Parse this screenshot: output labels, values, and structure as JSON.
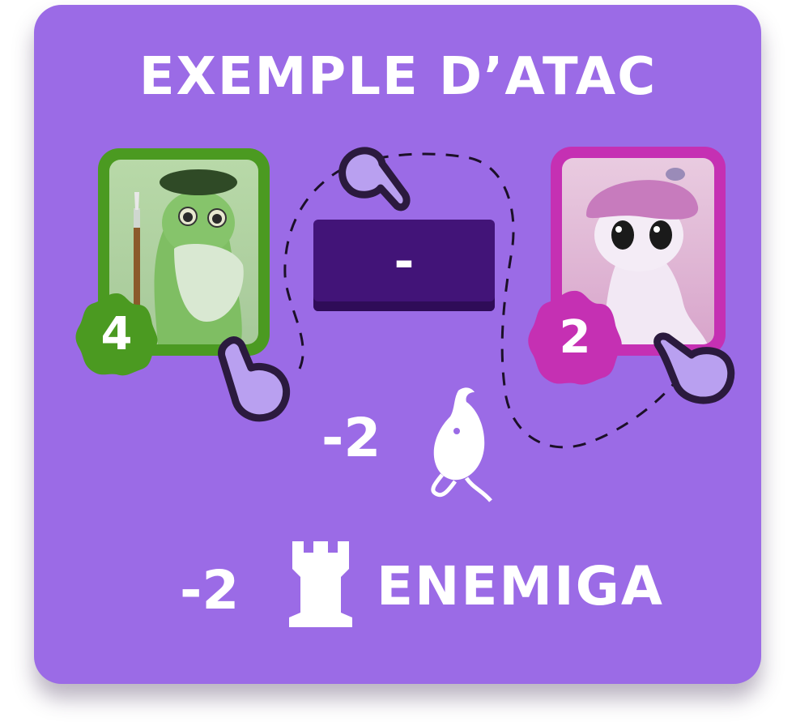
{
  "title": "EXEMPLE D’ATAC",
  "attacker": {
    "value": "4",
    "color": "#4b9a21"
  },
  "defender": {
    "value": "2",
    "color": "#c530b3"
  },
  "action_button": {
    "label": "-"
  },
  "effects": {
    "creature_damage": "-2",
    "tower_damage": "-2",
    "tower_label": "ENEMIGA"
  },
  "colors": {
    "background": "#9b6be6",
    "button": "#421478",
    "pointer_fill": "#b9a0f0",
    "pointer_outline": "#2b1a3e"
  },
  "icons": [
    "pointer-hand-icon",
    "creature-icon",
    "tower-icon"
  ]
}
